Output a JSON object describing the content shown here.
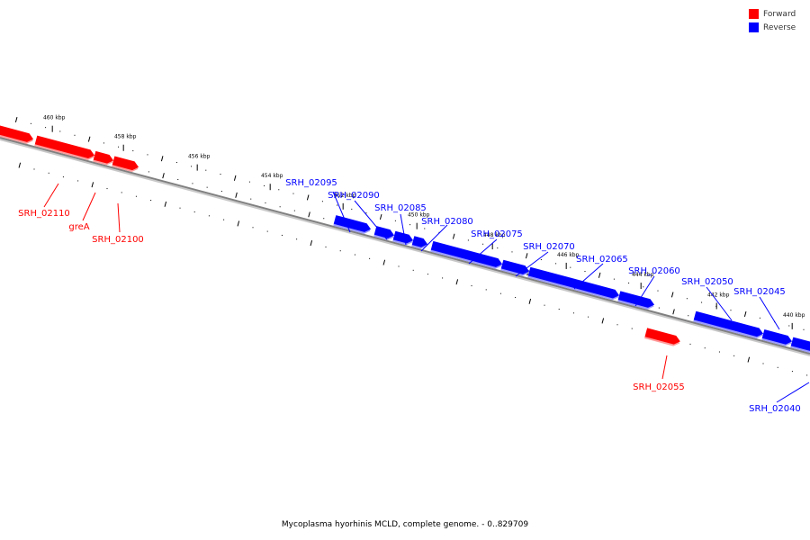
{
  "caption": "Mycoplasma hyorhinis MCLD, complete genome. - 0..829709",
  "legend": [
    {
      "label": "Forward",
      "color": "#ff0000"
    },
    {
      "label": "Reverse",
      "color": "#0000ff"
    }
  ],
  "colors": {
    "forward": "#ff0000",
    "reverse": "#0000ff",
    "backbone": "#808080"
  },
  "scale_ticks": [
    "460 kbp",
    "458 kbp",
    "456 kbp",
    "454 kbp",
    "452 kbp",
    "450 kbp",
    "448 kbp",
    "446 kbp",
    "444 kbp",
    "442 kbp",
    "440 kbp"
  ],
  "genes": [
    {
      "name": "SRH_02110",
      "strand": "forward"
    },
    {
      "name": "greA",
      "strand": "forward"
    },
    {
      "name": "SRH_02100",
      "strand": "forward"
    },
    {
      "name": "SRH_02095",
      "strand": "reverse"
    },
    {
      "name": "SRH_02090",
      "strand": "reverse"
    },
    {
      "name": "SRH_02085",
      "strand": "reverse"
    },
    {
      "name": "SRH_02080",
      "strand": "reverse"
    },
    {
      "name": "SRH_02075",
      "strand": "reverse"
    },
    {
      "name": "SRH_02070",
      "strand": "reverse"
    },
    {
      "name": "SRH_02065",
      "strand": "reverse"
    },
    {
      "name": "SRH_02060",
      "strand": "reverse"
    },
    {
      "name": "SRH_02055",
      "strand": "forward"
    },
    {
      "name": "SRH_02050",
      "strand": "reverse"
    },
    {
      "name": "SRH_02045",
      "strand": "reverse"
    },
    {
      "name": "SRH_02040",
      "strand": "reverse"
    }
  ]
}
